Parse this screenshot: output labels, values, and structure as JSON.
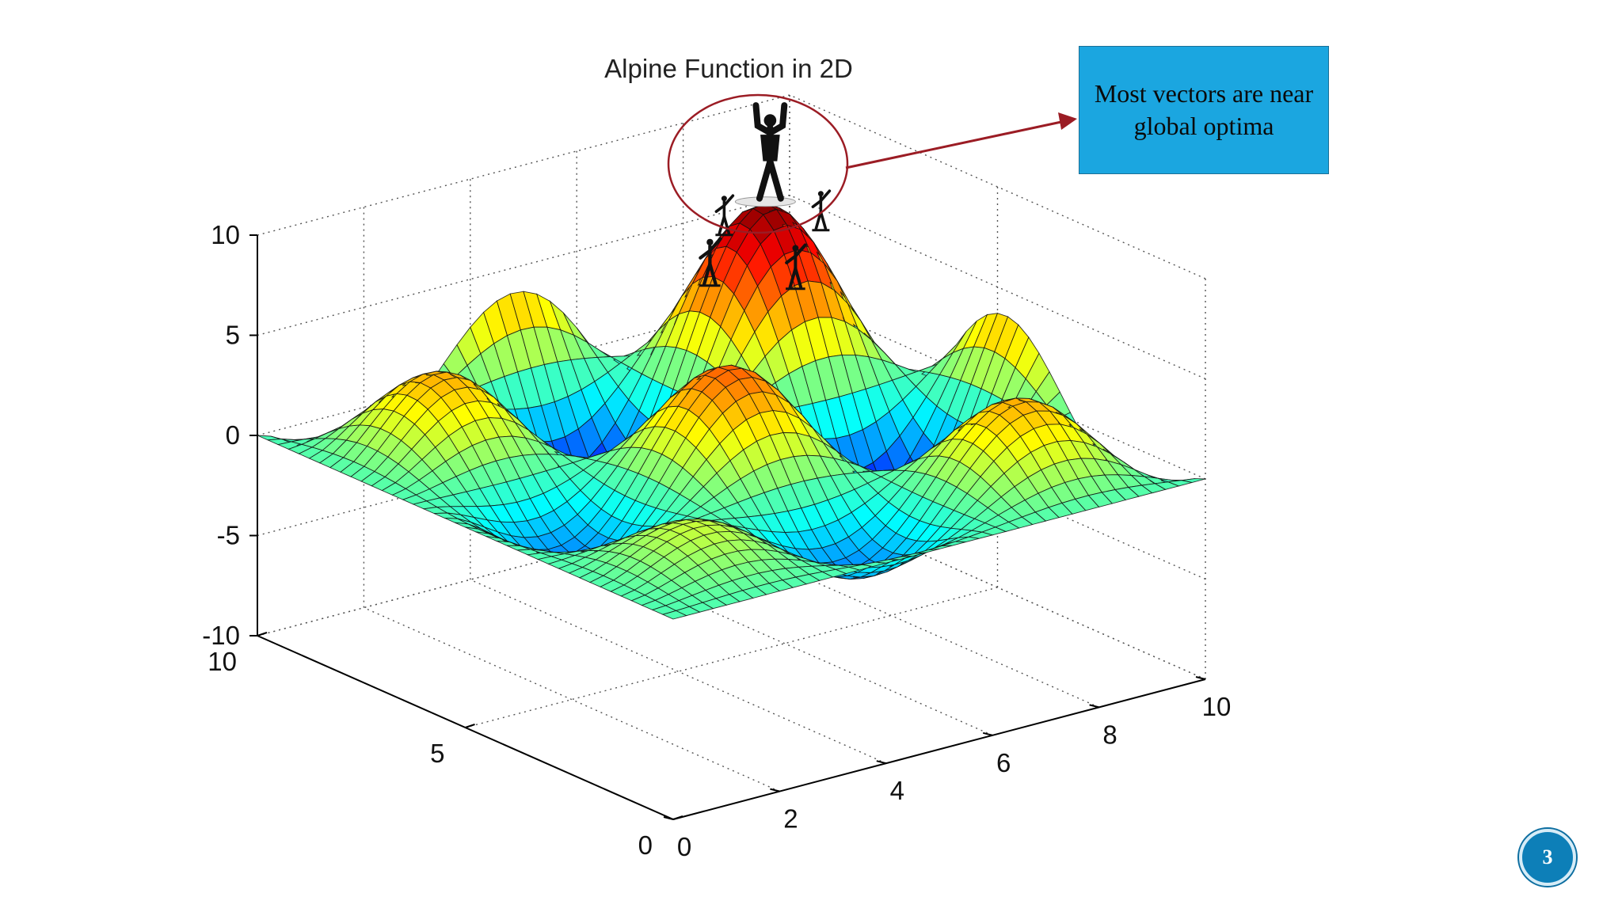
{
  "slide": {
    "callout_text": "Most vectors are near global optima",
    "page_number": "3",
    "accent_color": "#1ba6e0",
    "annotation_color": "#9b1c24"
  },
  "chart_data": {
    "type": "surface",
    "title": "Alpine Function in 2D",
    "x_ticks": [
      "0",
      "2",
      "4",
      "6",
      "8",
      "10"
    ],
    "y_ticks": [
      "0",
      "5",
      "10"
    ],
    "z_ticks": [
      "10",
      "5",
      "0",
      "-5",
      "-10"
    ],
    "xlim": [
      0,
      10
    ],
    "ylim": [
      0,
      10
    ],
    "zlim": [
      -10,
      10
    ],
    "grid": true,
    "colormap": "jet",
    "global_optimum": {
      "x": 7.917,
      "y": 7.917,
      "z": 7.885
    },
    "agents_marker": "stick figures gathered at global optimum"
  }
}
